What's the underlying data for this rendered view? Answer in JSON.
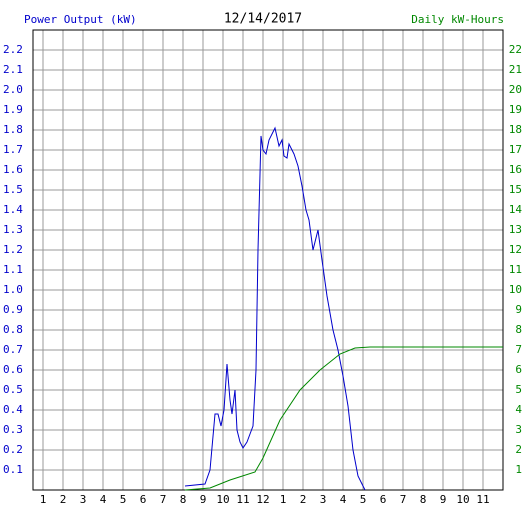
{
  "chart_data": {
    "type": "line",
    "title": "12/14/2017",
    "y_label": "Power Output (kW)",
    "y2_label": "Daily kW-Hours",
    "xlim": [
      0.5,
      24
    ],
    "xticks": [
      1,
      2,
      3,
      4,
      5,
      6,
      7,
      8,
      9,
      10,
      11,
      12,
      {
        "value": 13,
        "label": "1"
      },
      {
        "value": 14,
        "label": "2"
      },
      {
        "value": 15,
        "label": "3"
      },
      {
        "value": 16,
        "label": "4"
      },
      {
        "value": 17,
        "label": "5"
      },
      {
        "value": 18,
        "label": "6"
      },
      {
        "value": 19,
        "label": "7"
      },
      {
        "value": 20,
        "label": "8"
      },
      {
        "value": 21,
        "label": "9"
      },
      {
        "value": 22,
        "label": "10"
      },
      {
        "value": 23,
        "label": "11"
      }
    ],
    "ylim": [
      0,
      2.3
    ],
    "yticks": [
      0.1,
      0.2,
      0.3,
      0.4,
      0.5,
      0.6,
      0.7,
      0.8,
      0.9,
      {
        "value": 1,
        "label": "1.0"
      },
      1.1,
      1.2,
      1.3,
      1.4,
      1.5,
      1.6,
      1.7,
      1.8,
      1.9,
      {
        "value": 2,
        "label": "2.0"
      },
      2.1,
      2.2
    ],
    "y2lim": [
      0,
      23
    ],
    "y2ticks": [
      1,
      2,
      3,
      4,
      5,
      6,
      7,
      8,
      9,
      10,
      11,
      12,
      13,
      14,
      15,
      16,
      17,
      18,
      19,
      20,
      21,
      22
    ],
    "grid": true,
    "series": [
      {
        "name": "Power Output (kW)",
        "color": "#0000cc",
        "x": [
          8.1,
          9.1,
          9.35,
          9.6,
          9.75,
          9.9,
          10.05,
          10.2,
          10.35,
          10.45,
          10.6,
          10.7,
          10.85,
          11.0,
          11.2,
          11.35,
          11.5,
          11.65,
          11.75,
          11.9,
          12.0,
          12.15,
          12.3,
          12.6,
          12.8,
          12.95,
          13.05,
          13.2,
          13.3,
          13.55,
          13.75,
          13.95,
          14.15,
          14.3,
          14.5,
          14.75,
          14.95,
          15.2,
          15.5,
          15.75,
          16.0,
          16.25,
          16.5,
          16.75,
          17.0,
          17.1
        ],
        "values": [
          0.02,
          0.03,
          0.1,
          0.38,
          0.38,
          0.32,
          0.4,
          0.63,
          0.45,
          0.38,
          0.5,
          0.3,
          0.24,
          0.21,
          0.24,
          0.28,
          0.32,
          0.6,
          1.2,
          1.77,
          1.7,
          1.68,
          1.75,
          1.81,
          1.72,
          1.75,
          1.67,
          1.66,
          1.73,
          1.68,
          1.62,
          1.52,
          1.4,
          1.35,
          1.2,
          1.3,
          1.15,
          0.97,
          0.8,
          0.7,
          0.57,
          0.42,
          0.2,
          0.07,
          0.02,
          0
        ]
      },
      {
        "name": "Daily kW-Hours",
        "color": "#008800",
        "axis": "y2",
        "x": [
          8.1,
          9.35,
          10.35,
          11.6,
          12.0,
          12.85,
          13.85,
          14.85,
          15.85,
          16.6,
          17.35,
          24
        ],
        "values": [
          0,
          0.1,
          0.5,
          0.9,
          1.6,
          3.5,
          5.0,
          6.0,
          6.8,
          7.1,
          7.15,
          7.15
        ]
      }
    ]
  }
}
